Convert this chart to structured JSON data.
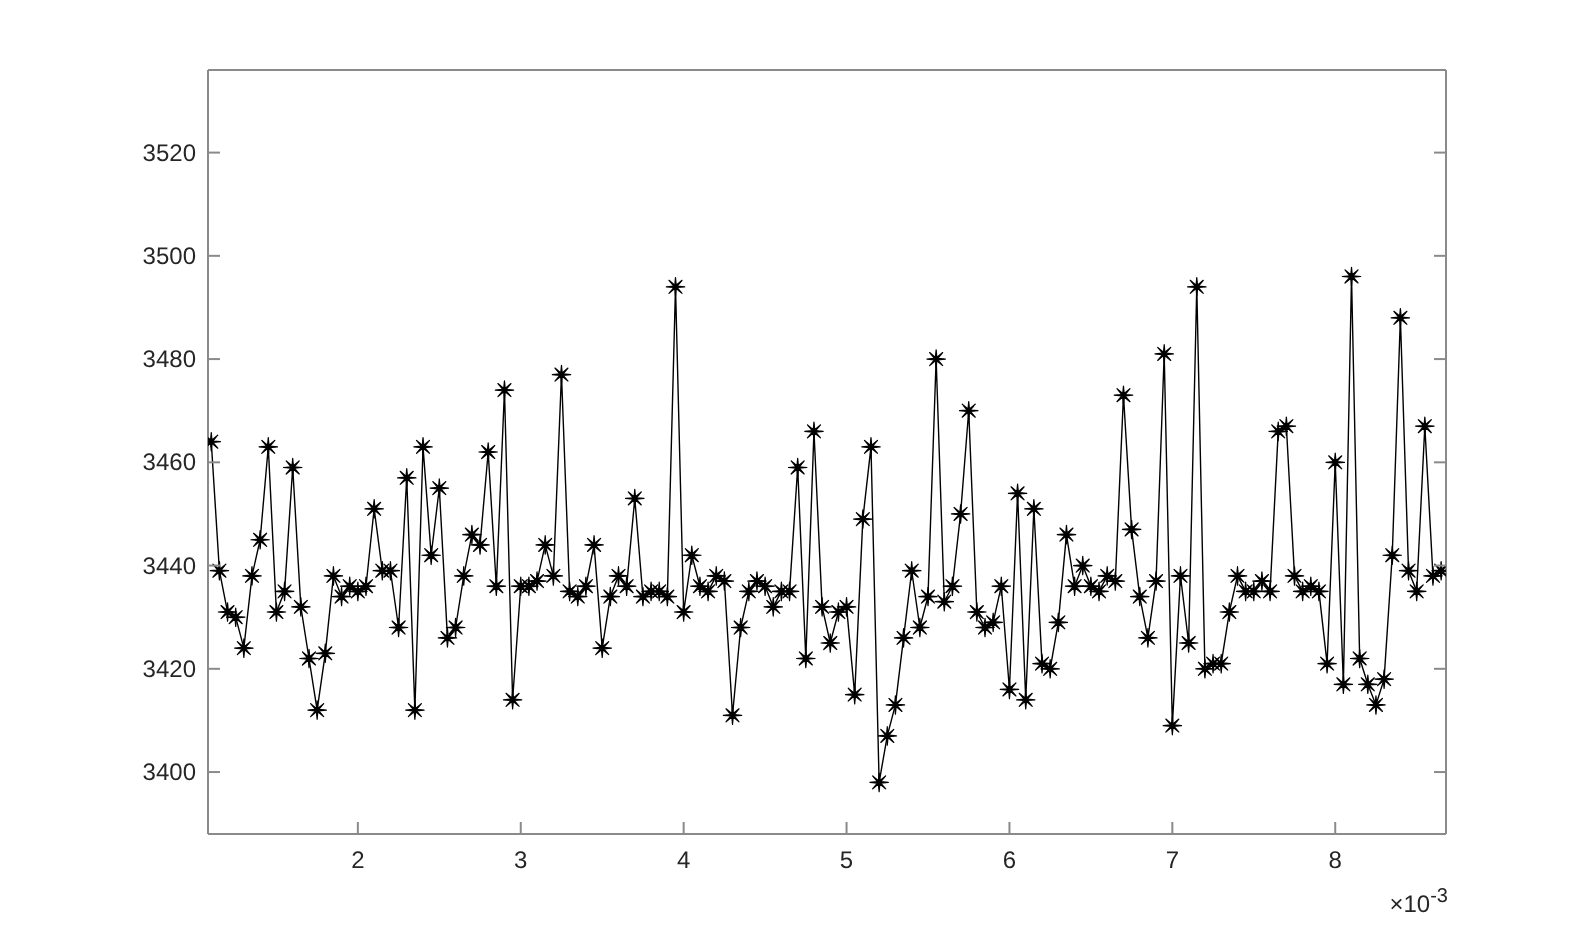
{
  "chart_data": {
    "type": "line",
    "x": [
      1.1,
      1.15,
      1.2,
      1.25,
      1.3,
      1.35,
      1.4,
      1.45,
      1.5,
      1.55,
      1.6,
      1.65,
      1.7,
      1.75,
      1.8,
      1.85,
      1.9,
      1.95,
      2,
      2.05,
      2.1,
      2.15,
      2.2,
      2.25,
      2.3,
      2.35,
      2.4,
      2.45,
      2.5,
      2.55,
      2.6,
      2.65,
      2.7,
      2.75,
      2.8,
      2.85,
      2.9,
      2.95,
      3,
      3.05,
      3.1,
      3.15,
      3.2,
      3.25,
      3.3,
      3.35,
      3.4,
      3.45,
      3.5,
      3.55,
      3.6,
      3.65,
      3.7,
      3.75,
      3.8,
      3.85,
      3.9,
      3.95,
      4,
      4.05,
      4.1,
      4.15,
      4.2,
      4.25,
      4.3,
      4.35,
      4.4,
      4.45,
      4.5,
      4.55,
      4.6,
      4.65,
      4.7,
      4.75,
      4.8,
      4.85,
      4.9,
      4.95,
      5,
      5.05,
      5.1,
      5.15,
      5.2,
      5.25,
      5.3,
      5.35,
      5.4,
      5.45,
      5.5,
      5.55,
      5.6,
      5.65,
      5.7,
      5.75,
      5.8,
      5.85,
      5.9,
      5.95,
      6,
      6.05,
      6.1,
      6.15,
      6.2,
      6.25,
      6.3,
      6.35,
      6.4,
      6.45,
      6.5,
      6.55,
      6.6,
      6.65,
      6.7,
      6.75,
      6.8,
      6.85,
      6.9,
      6.95,
      7,
      7.05,
      7.1,
      7.15,
      7.2,
      7.25,
      7.3,
      7.35,
      7.4,
      7.45,
      7.5,
      7.55,
      7.6,
      7.65,
      7.7,
      7.75,
      7.8,
      7.85,
      7.9,
      7.95,
      8,
      8.05,
      8.1,
      8.15,
      8.2,
      8.25,
      8.3,
      8.35,
      8.4,
      8.45,
      8.5,
      8.55,
      8.6,
      8.65
    ],
    "series": [
      {
        "color": "#000000",
        "values": [
          3464,
          3439,
          3431,
          3430,
          3424,
          3438,
          3445,
          3463,
          3431,
          3435,
          3459,
          3432,
          3422,
          3412,
          3423,
          3438,
          3434,
          3436,
          3435,
          3436,
          3451,
          3439,
          3439,
          3428,
          3457,
          3412,
          3463,
          3442,
          3455,
          3426,
          3428,
          3438,
          3446,
          3444,
          3462,
          3436,
          3474,
          3414,
          3436,
          3436,
          3437,
          3444,
          3438,
          3477,
          3435,
          3434,
          3436,
          3444,
          3424,
          3434,
          3438,
          3436,
          3453,
          3434,
          3435,
          3435,
          3434,
          3494,
          3431,
          3442,
          3436,
          3435,
          3438,
          3437,
          3411,
          3428,
          3435,
          3437,
          3436,
          3432,
          3435,
          3435,
          3459,
          3422,
          3466,
          3432,
          3425,
          3431,
          3432,
          3415,
          3449,
          3463,
          3398,
          3407,
          3413,
          3426,
          3439,
          3428,
          3434,
          3480,
          3433,
          3436,
          3450,
          3470,
          3431,
          3428,
          3429,
          3436,
          3416,
          3454,
          3414,
          3451,
          3421,
          3420,
          3429,
          3446,
          3436,
          3440,
          3436,
          3435,
          3438,
          3437,
          3473,
          3447,
          3434,
          3426,
          3437,
          3481,
          3409,
          3438,
          3425,
          3494,
          3420,
          3421,
          3421,
          3431,
          3438,
          3435,
          3435,
          3437,
          3435,
          3466,
          3467,
          3438,
          3435,
          3436,
          3435,
          3421,
          3460,
          3417,
          3496,
          3422,
          3417,
          3413,
          3418,
          3442,
          3488,
          3439,
          3435,
          3467,
          3438,
          3439
        ]
      }
    ],
    "xlim": [
      1.08,
      8.68
    ],
    "ylim": [
      3388,
      3536
    ],
    "xticks": [
      2,
      3,
      4,
      5,
      6,
      7,
      8
    ],
    "yticks": [
      3400,
      3420,
      3440,
      3460,
      3480,
      3500,
      3520
    ],
    "marker": "star",
    "annotations": [
      "×10$^{-3}$"
    ]
  }
}
